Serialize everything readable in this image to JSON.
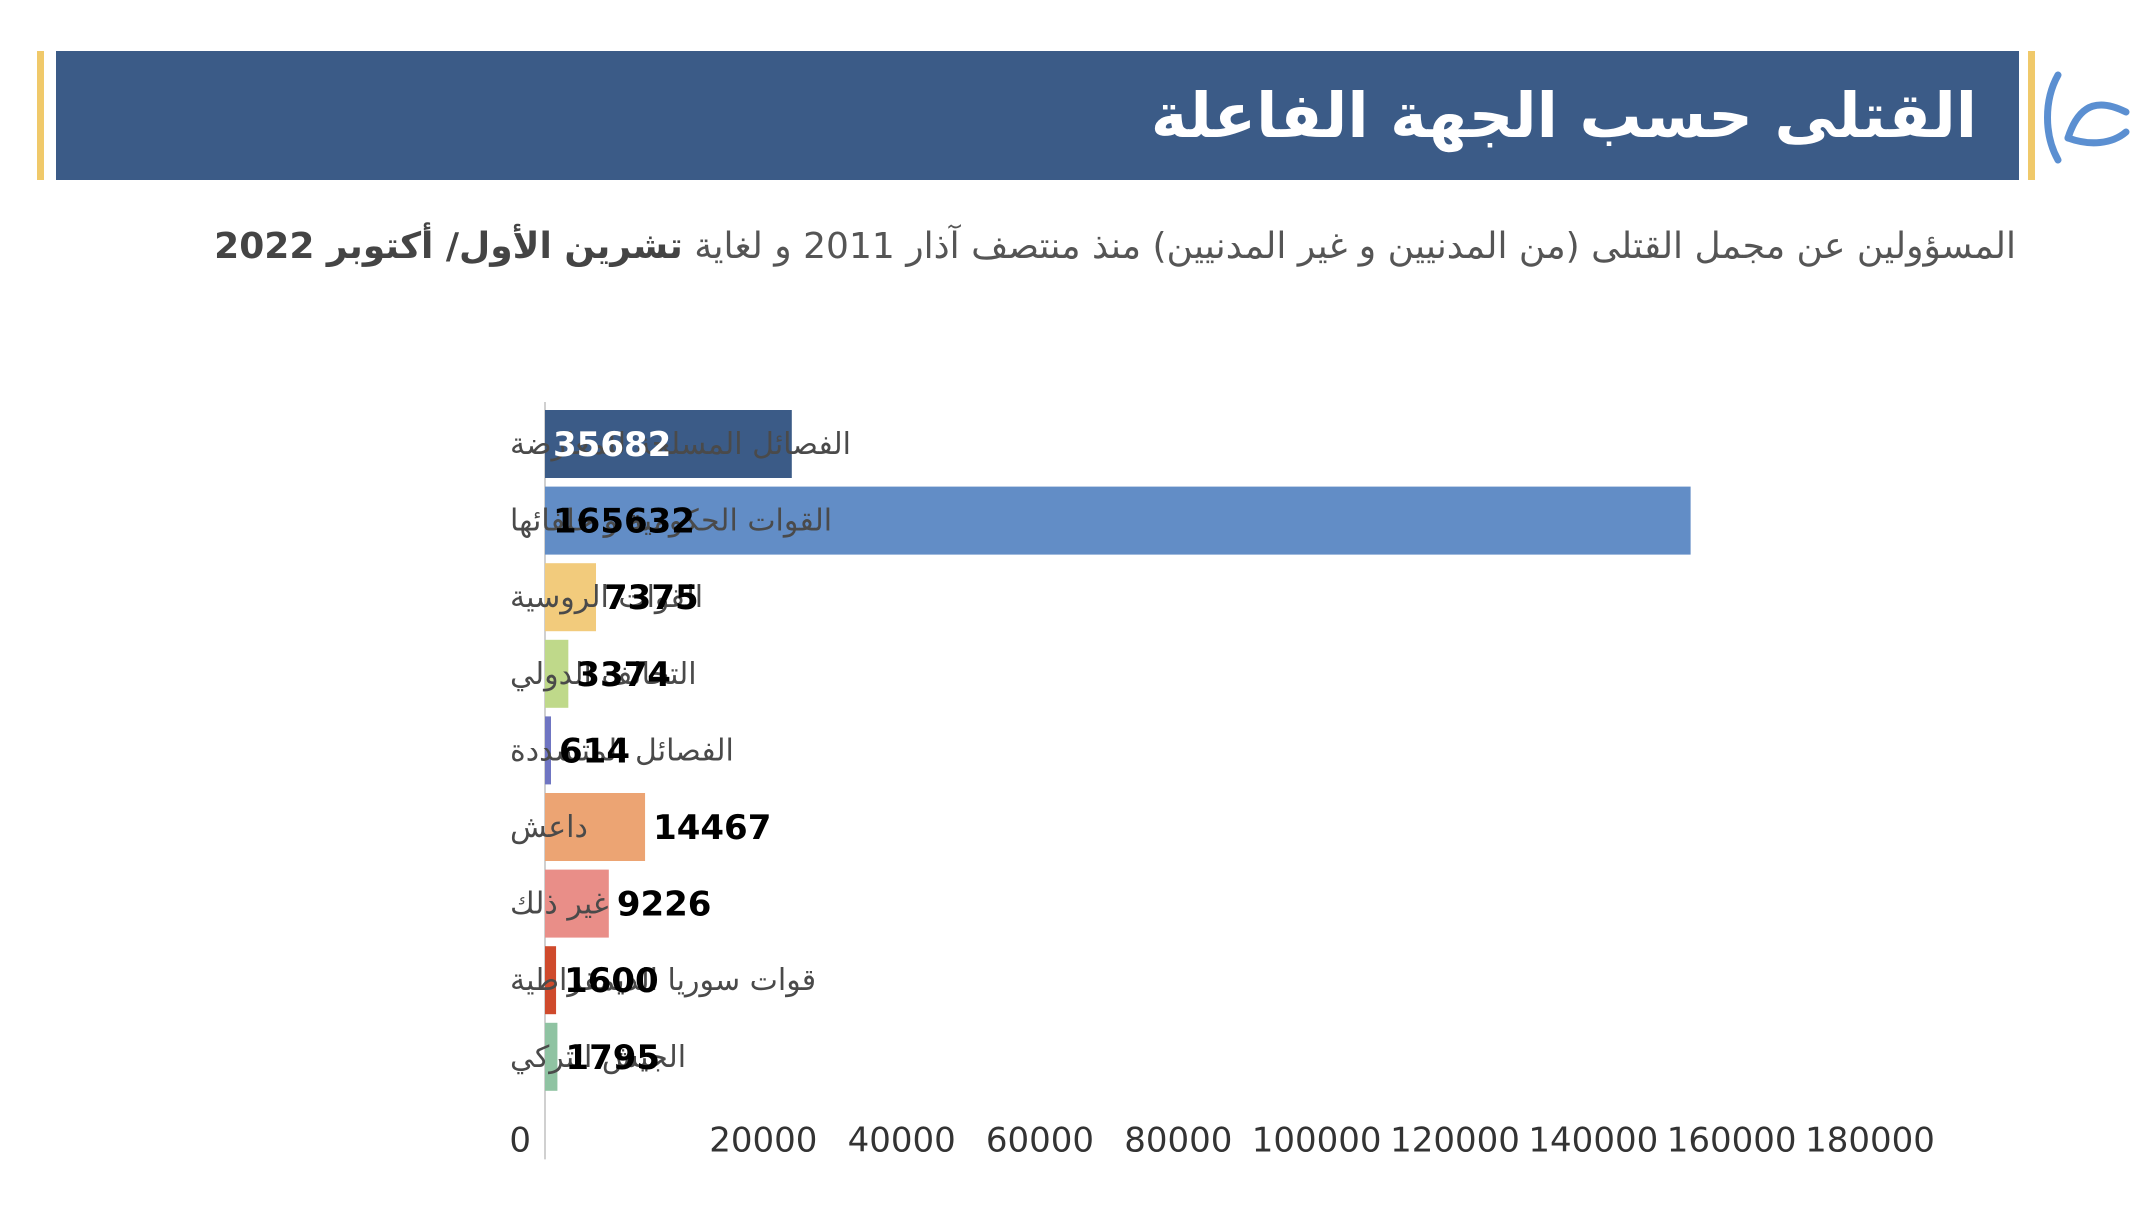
{
  "header": {
    "title": "القتلى حسب الجهة الفاعلة",
    "accent_color": "#f0c96a",
    "bar_color": "#3b5b87"
  },
  "subtitle": {
    "text_part1": "المسؤولين عن مجمل القتلى (من المدنيين و غير المدنيين) منذ منتصف آذار 2011 و لغاية ",
    "text_bold": "تشرين الأول/ أكتوبر 2022"
  },
  "logo": {
    "icon": "brand-logo-icon",
    "color": "#5b8fd1"
  },
  "chart_data": {
    "type": "bar",
    "orientation": "horizontal",
    "categories": [
      "الفصائل المسلحة للمعارضة",
      "القوات الحكومية و حلفائها",
      "القوات الروسية",
      "التحالف الدولي",
      "الفصائل المتشددة",
      "داعش",
      "غير ذلك",
      "قوات سوريا الديمقراطية",
      "الجيش التركي"
    ],
    "values": [
      35682,
      165632,
      7375,
      3374,
      614,
      14467,
      9226,
      1600,
      1795
    ],
    "value_labels": [
      "35682",
      "165632",
      "7375",
      "3374",
      "614",
      "14467",
      "9226",
      "1600",
      "1795"
    ],
    "colors": [
      "#3b5b87",
      "#628dc6",
      "#f2cb7c",
      "#bfd98a",
      "#6f75c2",
      "#eca473",
      "#e98e88",
      "#cf4a2c",
      "#8fc3a2"
    ],
    "label_colors": [
      "#ffffff",
      "#000000",
      "#000000",
      "#000000",
      "#000000",
      "#000000",
      "#000000",
      "#000000",
      "#000000"
    ],
    "label_inside": [
      true,
      true,
      false,
      false,
      false,
      false,
      false,
      false,
      false
    ],
    "xlim": [
      0,
      180000
    ],
    "xticks": [
      0,
      20000,
      40000,
      60000,
      80000,
      100000,
      120000,
      140000,
      160000,
      180000
    ],
    "xtick_labels": [
      "0",
      "20000",
      "40000",
      "60000",
      "80000",
      "100000",
      "120000",
      "140000",
      "160000",
      "180000"
    ],
    "grid": false,
    "title": "",
    "xlabel": "",
    "ylabel": ""
  }
}
